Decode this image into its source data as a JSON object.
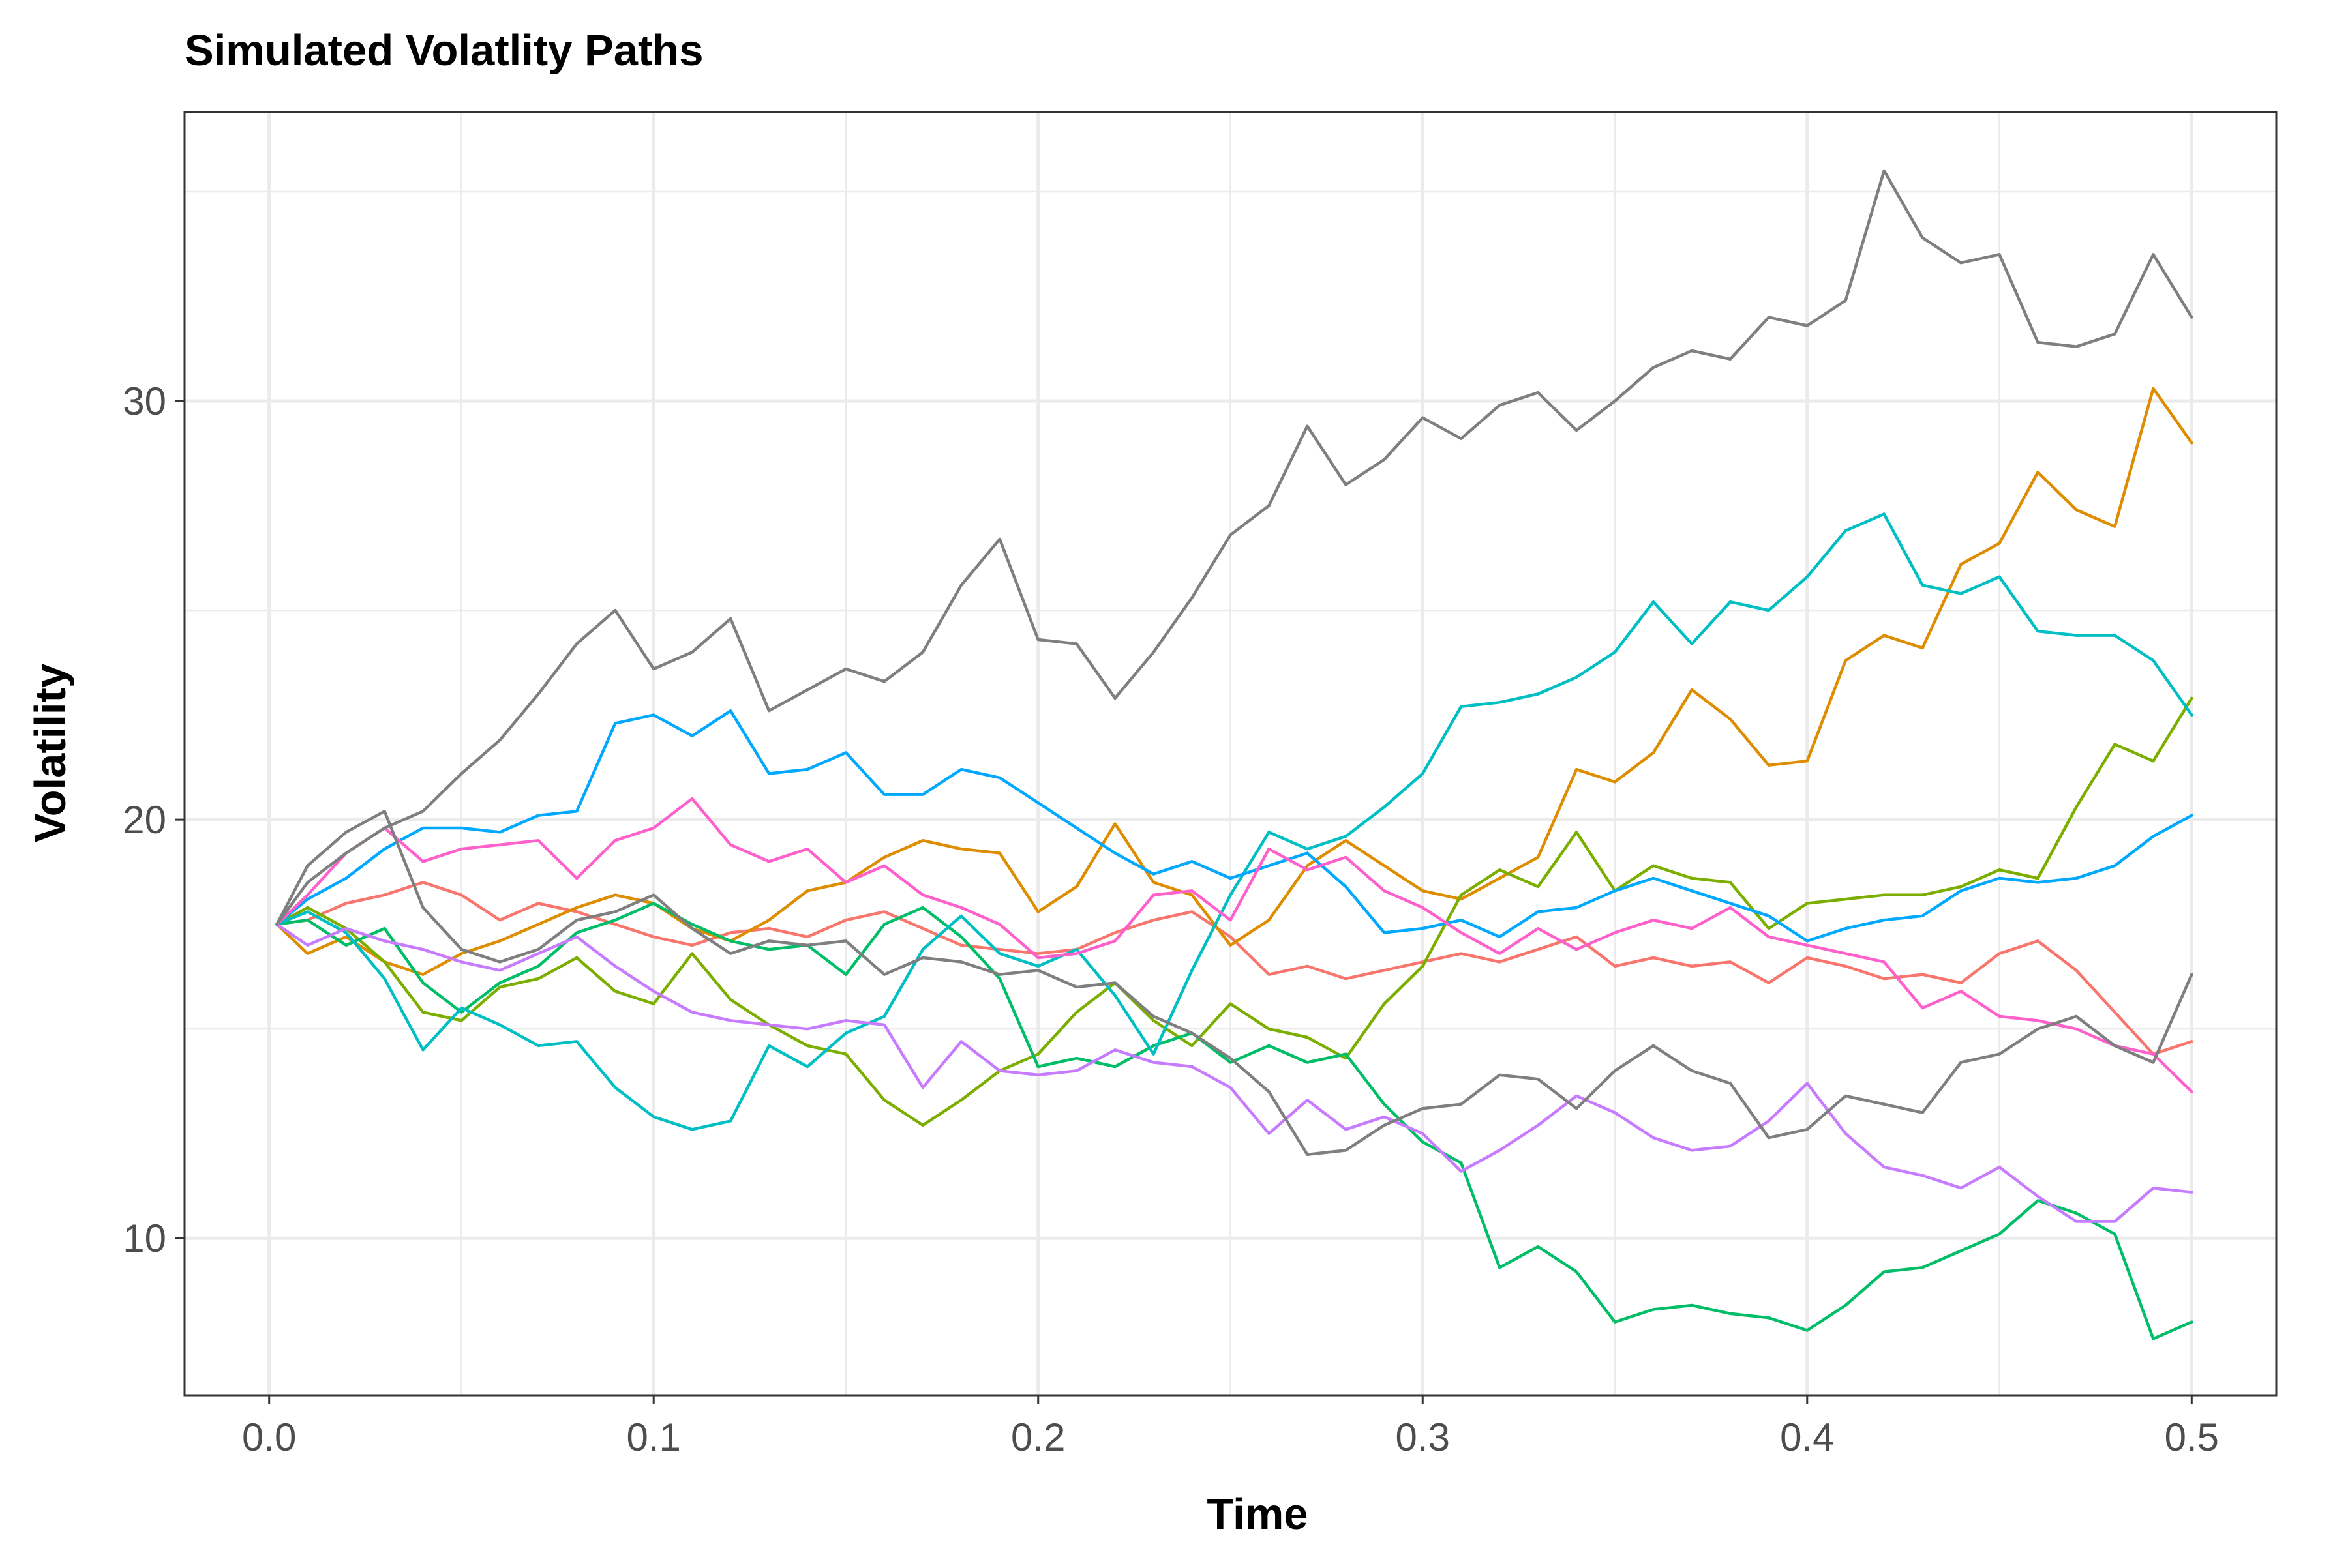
{
  "chart_data": {
    "type": "line",
    "title": "Simulated Volatlity Paths",
    "xlabel": "Time",
    "ylabel": "Volatility",
    "xlim": [
      -0.022,
      0.522
    ],
    "ylim": [
      6.25,
      36.9
    ],
    "x_ticks": [
      "0.0",
      "0.1",
      "0.2",
      "0.3",
      "0.4",
      "0.5"
    ],
    "x_tick_values": [
      0,
      0.1,
      0.2,
      0.3,
      0.4,
      0.5
    ],
    "x_minor_values": [
      0.05,
      0.15,
      0.25,
      0.35,
      0.45
    ],
    "y_ticks": [
      "10",
      "20",
      "30"
    ],
    "y_tick_values": [
      10,
      20,
      30
    ],
    "y_minor_values": [
      15,
      25,
      35
    ],
    "grid": true,
    "legend": "none",
    "series": [
      {
        "color": "#F8766D",
        "x": [
          0.002,
          0.01,
          0.02,
          0.03,
          0.04,
          0.05,
          0.06,
          0.07,
          0.08,
          0.09,
          0.1,
          0.11,
          0.12,
          0.13,
          0.14,
          0.15,
          0.16,
          0.17,
          0.18,
          0.19,
          0.2,
          0.21,
          0.22,
          0.23,
          0.24,
          0.25,
          0.26,
          0.27,
          0.28,
          0.29,
          0.3,
          0.31,
          0.32,
          0.33,
          0.34,
          0.35,
          0.36,
          0.37,
          0.38,
          0.39,
          0.4,
          0.41,
          0.42,
          0.43,
          0.44,
          0.45,
          0.46,
          0.47,
          0.48,
          0.49,
          0.5
        ],
        "values": [
          17.5,
          17.6,
          18.0,
          18.2,
          18.5,
          18.2,
          17.6,
          18.0,
          17.8,
          17.5,
          17.2,
          17.0,
          17.3,
          17.4,
          17.2,
          17.6,
          17.8,
          17.4,
          17.0,
          16.9,
          16.8,
          16.9,
          17.3,
          17.6,
          17.8,
          17.2,
          16.3,
          16.5,
          16.2,
          16.4,
          16.6,
          16.8,
          16.6,
          16.9,
          17.2,
          16.5,
          16.7,
          16.5,
          16.6,
          16.1,
          16.7,
          16.5,
          16.2,
          16.3,
          16.1,
          16.8,
          17.1,
          16.4,
          15.4,
          14.4,
          14.7
        ]
      },
      {
        "color": "#DE8C00",
        "x": [
          0.002,
          0.01,
          0.02,
          0.03,
          0.04,
          0.05,
          0.06,
          0.07,
          0.08,
          0.09,
          0.1,
          0.11,
          0.12,
          0.13,
          0.14,
          0.15,
          0.16,
          0.17,
          0.18,
          0.19,
          0.2,
          0.21,
          0.22,
          0.23,
          0.24,
          0.25,
          0.26,
          0.27,
          0.28,
          0.29,
          0.3,
          0.31,
          0.32,
          0.33,
          0.34,
          0.35,
          0.36,
          0.37,
          0.38,
          0.39,
          0.4,
          0.41,
          0.42,
          0.43,
          0.44,
          0.45,
          0.46,
          0.47,
          0.48,
          0.49,
          0.5
        ],
        "values": [
          17.5,
          16.8,
          17.2,
          16.6,
          16.3,
          16.8,
          17.1,
          17.5,
          17.9,
          18.2,
          18.0,
          17.4,
          17.1,
          17.6,
          18.3,
          18.5,
          19.1,
          19.5,
          19.3,
          19.2,
          17.8,
          18.4,
          19.9,
          18.5,
          18.2,
          17.0,
          17.6,
          18.9,
          19.5,
          18.9,
          18.3,
          18.1,
          18.6,
          19.1,
          21.2,
          20.9,
          21.6,
          23.1,
          22.4,
          21.3,
          21.4,
          23.8,
          24.4,
          24.1,
          26.1,
          26.6,
          28.3,
          27.4,
          27.0,
          30.3,
          29.0
        ]
      },
      {
        "color": "#7CAE00",
        "x": [
          0.002,
          0.01,
          0.02,
          0.03,
          0.04,
          0.05,
          0.06,
          0.07,
          0.08,
          0.09,
          0.1,
          0.11,
          0.12,
          0.13,
          0.14,
          0.15,
          0.16,
          0.17,
          0.18,
          0.19,
          0.2,
          0.21,
          0.22,
          0.23,
          0.24,
          0.25,
          0.26,
          0.27,
          0.28,
          0.29,
          0.3,
          0.31,
          0.32,
          0.33,
          0.34,
          0.35,
          0.36,
          0.37,
          0.38,
          0.39,
          0.4,
          0.41,
          0.42,
          0.43,
          0.44,
          0.45,
          0.46,
          0.47,
          0.48,
          0.49,
          0.5
        ],
        "values": [
          17.5,
          17.9,
          17.4,
          16.6,
          15.4,
          15.2,
          16.0,
          16.2,
          16.7,
          15.9,
          15.6,
          16.8,
          15.7,
          15.1,
          14.6,
          14.4,
          13.3,
          12.7,
          13.3,
          14.0,
          14.4,
          15.4,
          16.1,
          15.2,
          14.6,
          15.6,
          15.0,
          14.8,
          14.3,
          15.6,
          16.5,
          18.2,
          18.8,
          18.4,
          19.7,
          18.3,
          18.9,
          18.6,
          18.5,
          17.4,
          18.0,
          18.1,
          18.2,
          18.2,
          18.4,
          18.8,
          18.6,
          20.3,
          21.8,
          21.4,
          22.9
        ]
      },
      {
        "color": "#00BE67",
        "x": [
          0.002,
          0.01,
          0.02,
          0.03,
          0.04,
          0.05,
          0.06,
          0.07,
          0.08,
          0.09,
          0.1,
          0.11,
          0.12,
          0.13,
          0.14,
          0.15,
          0.16,
          0.17,
          0.18,
          0.19,
          0.2,
          0.21,
          0.22,
          0.23,
          0.24,
          0.25,
          0.26,
          0.27,
          0.28,
          0.29,
          0.3,
          0.31,
          0.32,
          0.33,
          0.34,
          0.35,
          0.36,
          0.37,
          0.38,
          0.39,
          0.4,
          0.41,
          0.42,
          0.43,
          0.44,
          0.45,
          0.46,
          0.47,
          0.48,
          0.49,
          0.5
        ],
        "values": [
          17.5,
          17.6,
          17.0,
          17.4,
          16.1,
          15.4,
          16.1,
          16.5,
          17.3,
          17.6,
          18.0,
          17.5,
          17.1,
          16.9,
          17.0,
          16.3,
          17.5,
          17.9,
          17.2,
          16.2,
          14.1,
          14.3,
          14.1,
          14.6,
          14.9,
          14.2,
          14.6,
          14.2,
          14.4,
          13.2,
          12.3,
          11.8,
          9.3,
          9.8,
          9.2,
          8.0,
          8.3,
          8.4,
          8.2,
          8.1,
          7.8,
          8.4,
          9.2,
          9.3,
          9.7,
          10.1,
          10.9,
          10.6,
          10.1,
          7.6,
          8.0
        ]
      },
      {
        "color": "#00BFC4",
        "x": [
          0.002,
          0.01,
          0.02,
          0.03,
          0.04,
          0.05,
          0.06,
          0.07,
          0.08,
          0.09,
          0.1,
          0.11,
          0.12,
          0.13,
          0.14,
          0.15,
          0.16,
          0.17,
          0.18,
          0.19,
          0.2,
          0.21,
          0.22,
          0.23,
          0.24,
          0.25,
          0.26,
          0.27,
          0.28,
          0.29,
          0.3,
          0.31,
          0.32,
          0.33,
          0.34,
          0.35,
          0.36,
          0.37,
          0.38,
          0.39,
          0.4,
          0.41,
          0.42,
          0.43,
          0.44,
          0.45,
          0.46,
          0.47,
          0.48,
          0.49,
          0.5
        ],
        "values": [
          17.5,
          17.8,
          17.3,
          16.2,
          14.5,
          15.5,
          15.1,
          14.6,
          14.7,
          13.6,
          12.9,
          12.6,
          12.8,
          14.6,
          14.1,
          14.9,
          15.3,
          16.9,
          17.7,
          16.8,
          16.5,
          16.9,
          15.8,
          14.4,
          16.4,
          18.2,
          19.7,
          19.3,
          19.6,
          20.3,
          21.1,
          22.7,
          22.8,
          23.0,
          23.4,
          24.0,
          25.2,
          24.2,
          25.2,
          25.0,
          25.8,
          26.9,
          27.3,
          25.6,
          25.4,
          25.8,
          24.5,
          24.4,
          24.4,
          23.8,
          22.5
        ]
      },
      {
        "color": "#00A9FF",
        "x": [
          0.002,
          0.01,
          0.02,
          0.03,
          0.04,
          0.05,
          0.06,
          0.07,
          0.08,
          0.09,
          0.1,
          0.11,
          0.12,
          0.13,
          0.14,
          0.15,
          0.16,
          0.17,
          0.18,
          0.19,
          0.2,
          0.21,
          0.22,
          0.23,
          0.24,
          0.25,
          0.26,
          0.27,
          0.28,
          0.29,
          0.3,
          0.31,
          0.32,
          0.33,
          0.34,
          0.35,
          0.36,
          0.37,
          0.38,
          0.39,
          0.4,
          0.41,
          0.42,
          0.43,
          0.44,
          0.45,
          0.46,
          0.47,
          0.48,
          0.49,
          0.5
        ],
        "values": [
          17.5,
          18.1,
          18.6,
          19.3,
          19.8,
          19.8,
          19.7,
          20.1,
          20.2,
          22.3,
          22.5,
          22.0,
          22.6,
          21.1,
          21.2,
          21.6,
          20.6,
          20.6,
          21.2,
          21.0,
          20.4,
          19.8,
          19.2,
          18.7,
          19.0,
          18.6,
          18.9,
          19.2,
          18.4,
          17.3,
          17.4,
          17.6,
          17.2,
          17.8,
          17.9,
          18.3,
          18.6,
          18.3,
          18.0,
          17.7,
          17.1,
          17.4,
          17.6,
          17.7,
          18.3,
          18.6,
          18.5,
          18.6,
          18.9,
          19.6,
          20.1
        ]
      },
      {
        "color": "#C77CFF",
        "x": [
          0.002,
          0.01,
          0.02,
          0.03,
          0.04,
          0.05,
          0.06,
          0.07,
          0.08,
          0.09,
          0.1,
          0.11,
          0.12,
          0.13,
          0.14,
          0.15,
          0.16,
          0.17,
          0.18,
          0.19,
          0.2,
          0.21,
          0.22,
          0.23,
          0.24,
          0.25,
          0.26,
          0.27,
          0.28,
          0.29,
          0.3,
          0.31,
          0.32,
          0.33,
          0.34,
          0.35,
          0.36,
          0.37,
          0.38,
          0.39,
          0.4,
          0.41,
          0.42,
          0.43,
          0.44,
          0.45,
          0.46,
          0.47,
          0.48,
          0.49,
          0.5
        ],
        "values": [
          17.5,
          17.0,
          17.4,
          17.1,
          16.9,
          16.6,
          16.4,
          16.8,
          17.2,
          16.5,
          15.9,
          15.4,
          15.2,
          15.1,
          15.0,
          15.2,
          15.1,
          13.6,
          14.7,
          14.0,
          13.9,
          14.0,
          14.5,
          14.2,
          14.1,
          13.6,
          12.5,
          13.3,
          12.6,
          12.9,
          12.5,
          11.6,
          12.1,
          12.7,
          13.4,
          13.0,
          12.4,
          12.1,
          12.2,
          12.8,
          13.7,
          12.5,
          11.7,
          11.5,
          11.2,
          11.7,
          11.0,
          10.4,
          10.4,
          11.2,
          11.1
        ]
      },
      {
        "color": "#FF61CC",
        "x": [
          0.002,
          0.01,
          0.02,
          0.03,
          0.04,
          0.05,
          0.06,
          0.07,
          0.08,
          0.09,
          0.1,
          0.11,
          0.12,
          0.13,
          0.14,
          0.15,
          0.16,
          0.17,
          0.18,
          0.19,
          0.2,
          0.21,
          0.22,
          0.23,
          0.24,
          0.25,
          0.26,
          0.27,
          0.28,
          0.29,
          0.3,
          0.31,
          0.32,
          0.33,
          0.34,
          0.35,
          0.36,
          0.37,
          0.38,
          0.39,
          0.4,
          0.41,
          0.42,
          0.43,
          0.44,
          0.45,
          0.46,
          0.47,
          0.48,
          0.49,
          0.5
        ],
        "values": [
          17.5,
          18.2,
          19.2,
          19.8,
          19.0,
          19.3,
          19.4,
          19.5,
          18.6,
          19.5,
          19.8,
          20.5,
          19.4,
          19.0,
          19.3,
          18.5,
          18.9,
          18.2,
          17.9,
          17.5,
          16.7,
          16.8,
          17.1,
          18.2,
          18.3,
          17.6,
          19.3,
          18.8,
          19.1,
          18.3,
          17.9,
          17.3,
          16.8,
          17.4,
          16.9,
          17.3,
          17.6,
          17.4,
          17.9,
          17.2,
          17.0,
          16.8,
          16.6,
          15.5,
          15.9,
          15.3,
          15.2,
          15.0,
          14.6,
          14.4,
          13.5
        ]
      },
      {
        "color": "#7F7F7F",
        "x": [
          0.002,
          0.01,
          0.02,
          0.03,
          0.04,
          0.05,
          0.06,
          0.07,
          0.08,
          0.09,
          0.1,
          0.11,
          0.12,
          0.13,
          0.14,
          0.15,
          0.16,
          0.17,
          0.18,
          0.19,
          0.2,
          0.21,
          0.22,
          0.23,
          0.24,
          0.25,
          0.26,
          0.27,
          0.28,
          0.29,
          0.3,
          0.31,
          0.32,
          0.33,
          0.34,
          0.35,
          0.36,
          0.37,
          0.38,
          0.39,
          0.4,
          0.41,
          0.42,
          0.43,
          0.44,
          0.45,
          0.46,
          0.47,
          0.48,
          0.49,
          0.5
        ],
        "values": [
          17.5,
          18.5,
          19.2,
          19.8,
          20.2,
          21.1,
          21.9,
          23.0,
          24.2,
          25.0,
          23.6,
          24.0,
          24.8,
          22.6,
          23.1,
          23.6,
          23.3,
          24.0,
          25.6,
          26.7,
          24.3,
          24.2,
          22.9,
          24.0,
          25.3,
          26.8,
          27.5,
          29.4,
          28.0,
          28.6,
          29.6,
          29.1,
          29.9,
          30.2,
          29.3,
          30.0,
          30.8,
          31.2,
          31.0,
          32.0,
          31.8,
          32.4,
          35.5,
          33.9,
          33.3,
          33.5,
          31.4,
          31.3,
          31.6,
          33.5,
          32.0
        ]
      },
      {
        "color": "#7F7F7F",
        "x": [
          0.002,
          0.01,
          0.02,
          0.03,
          0.04,
          0.05,
          0.06,
          0.07,
          0.08,
          0.09,
          0.1,
          0.11,
          0.12,
          0.13,
          0.14,
          0.15,
          0.16,
          0.17,
          0.18,
          0.19,
          0.2,
          0.21,
          0.22,
          0.23,
          0.24,
          0.25,
          0.26,
          0.27,
          0.28,
          0.29,
          0.3,
          0.31,
          0.32,
          0.33,
          0.34,
          0.35,
          0.36,
          0.37,
          0.38,
          0.39,
          0.4,
          0.41,
          0.42,
          0.43,
          0.44,
          0.45,
          0.46,
          0.47,
          0.48,
          0.49,
          0.5
        ],
        "values": [
          17.5,
          18.9,
          19.7,
          20.2,
          17.9,
          16.9,
          16.6,
          16.9,
          17.6,
          17.8,
          18.2,
          17.4,
          16.8,
          17.1,
          17.0,
          17.1,
          16.3,
          16.7,
          16.6,
          16.3,
          16.4,
          16.0,
          16.1,
          15.3,
          14.9,
          14.3,
          13.5,
          12.0,
          12.1,
          12.7,
          13.1,
          13.2,
          13.9,
          13.8,
          13.1,
          14.0,
          14.6,
          14.0,
          13.7,
          12.4,
          12.6,
          13.4,
          13.2,
          13.0,
          14.2,
          14.4,
          15.0,
          15.3,
          14.6,
          14.2,
          16.3
        ]
      }
    ]
  }
}
